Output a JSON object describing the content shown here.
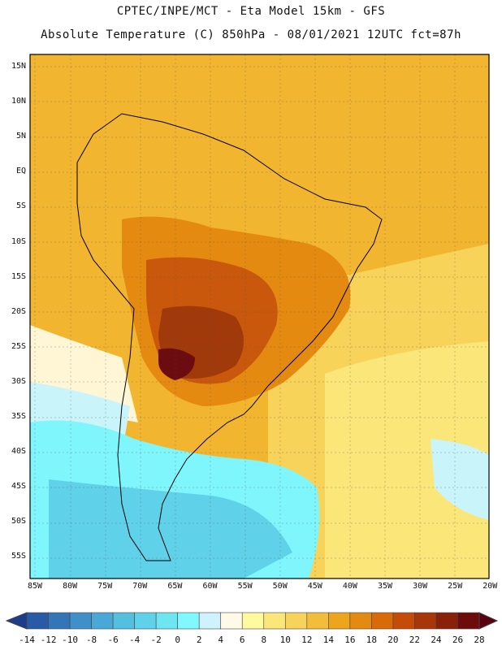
{
  "header": {
    "line1": "CPTEC/INPE/MCT -  Eta Model 15km - GFS",
    "line2": "Absolute Temperature (C) 850hPa - 08/01/2021 12UTC fct=87h"
  },
  "axes": {
    "lat_labels": [
      "15N",
      "10N",
      "5N",
      "EQ",
      "5S",
      "10S",
      "15S",
      "20S",
      "25S",
      "30S",
      "35S",
      "40S",
      "45S",
      "50S",
      "55S"
    ],
    "lon_labels": [
      "85W",
      "80W",
      "75W",
      "70W",
      "65W",
      "60W",
      "55W",
      "50W",
      "45W",
      "40W",
      "35W",
      "30W",
      "25W",
      "20W"
    ]
  },
  "colorbar": {
    "labels": [
      "-14",
      "-12",
      "-10",
      "-8",
      "-6",
      "-4",
      "-2",
      "0",
      "2",
      "4",
      "6",
      "8",
      "10",
      "12",
      "14",
      "16",
      "18",
      "20",
      "22",
      "24",
      "26",
      "28"
    ],
    "colors": [
      "#1e3c8c",
      "#2a5aa6",
      "#3475b8",
      "#3f8fc8",
      "#4aa8d6",
      "#55bfe0",
      "#5fd2ea",
      "#6ee6f2",
      "#80f8ff",
      "#cff2ff",
      "#fffae6",
      "#fffaa0",
      "#fbe67a",
      "#f7d35a",
      "#f2bd3a",
      "#eda61c",
      "#e48a10",
      "#d86a0a",
      "#c44c08",
      "#a83608",
      "#8a200a",
      "#6e0c0c",
      "#5a0010"
    ]
  },
  "map_palette": {
    "ocean_cold": "#7ef6fc",
    "ocean_cool": "#c9f4fa",
    "ocean_mild": "#fff6d6",
    "warm_yellow": "#f7d35a",
    "orange": "#f0a818",
    "deep_orange": "#e48a10",
    "hot": "#c9580c",
    "very_hot": "#a03a0a",
    "extreme": "#6a0c10"
  }
}
